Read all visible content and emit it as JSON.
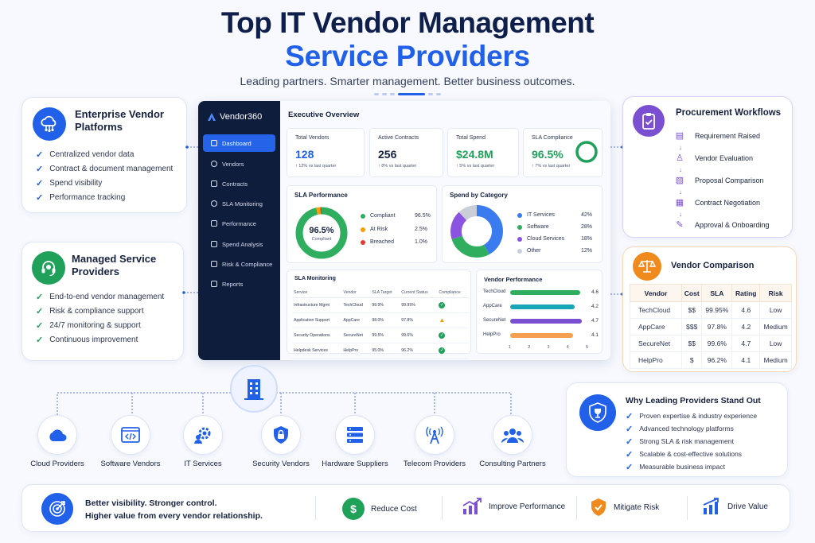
{
  "header": {
    "title_line1": "Top IT Vendor Management",
    "title_line2": "Service Providers",
    "subtitle": "Leading partners. Smarter management. Better business outcomes."
  },
  "colors": {
    "primary": "#2160e8",
    "navy": "#0f1f4b",
    "green": "#1fa15a",
    "orange": "#e8890b",
    "purple": "#7a4fd1",
    "red": "#e53935"
  },
  "left_cards": [
    {
      "title": "Enterprise Vendor Platforms",
      "icon": "cloud-network-icon",
      "items": [
        "Centralized vendor data",
        "Contract & document management",
        "Spend visibility",
        "Performance tracking"
      ]
    },
    {
      "title": "Managed Service Providers",
      "icon": "headset-icon",
      "items": [
        "End-to-end vendor management",
        "Risk & compliance support",
        "24/7 monitoring & support",
        "Continuous improvement"
      ]
    }
  ],
  "dashboard": {
    "brand": "Vendor360",
    "nav": [
      "Dashboard",
      "Vendors",
      "Contracts",
      "SLA Monitoring",
      "Performance",
      "Spend Analysis",
      "Risk & Compliance",
      "Reports"
    ],
    "active_nav": "Dashboard",
    "title": "Executive Overview",
    "kpis": [
      {
        "label": "Total Vendors",
        "value": "128",
        "delta": "↑ 12% vs last quarter"
      },
      {
        "label": "Active Contracts",
        "value": "256",
        "delta": "↑ 8% vs last quarter"
      },
      {
        "label": "Total Spend",
        "value": "$24.8M",
        "delta": "↑ 5% vs last quarter"
      },
      {
        "label": "SLA Compliance",
        "value": "96.5%",
        "delta": "↑ 7% vs last quarter"
      }
    ],
    "sla_performance": {
      "title": "SLA Performance",
      "center_value": "96.5%",
      "center_label": "Compliant",
      "legend": [
        {
          "name": "Compliant",
          "value": "96.5%",
          "color": "#2fae5f",
          "pct": 96.5
        },
        {
          "name": "At Risk",
          "value": "2.5%",
          "color": "#f5a000",
          "pct": 2.5
        },
        {
          "name": "Breached",
          "value": "1.0%",
          "color": "#e53935",
          "pct": 1.0
        }
      ]
    },
    "spend_by_category": {
      "title": "Spend by Category",
      "legend": [
        {
          "name": "IT Services",
          "value": "42%",
          "color": "#3b7bf0",
          "pct": 42
        },
        {
          "name": "Software",
          "value": "28%",
          "color": "#2fae5f",
          "pct": 28
        },
        {
          "name": "Cloud Services",
          "value": "18%",
          "color": "#8a54e0",
          "pct": 18
        },
        {
          "name": "Other",
          "value": "12%",
          "color": "#c9ced9",
          "pct": 12
        }
      ]
    },
    "sla_monitoring": {
      "title": "SLA Monitoring",
      "headers": [
        "Service",
        "Vendor",
        "SLA Target",
        "Current Status",
        "Compliance"
      ],
      "rows": [
        {
          "service": "Infrastructure Mgmt",
          "vendor": "TechCloud",
          "target": "99.9%",
          "current": "99.95%",
          "status": "ok"
        },
        {
          "service": "Application Support",
          "vendor": "AppCare",
          "target": "98.0%",
          "current": "97.8%",
          "status": "warn"
        },
        {
          "service": "Security Operations",
          "vendor": "SecureNet",
          "target": "99.5%",
          "current": "99.6%",
          "status": "ok"
        },
        {
          "service": "Helpdesk Services",
          "vendor": "HelpPro",
          "target": "95.0%",
          "current": "96.2%",
          "status": "ok"
        }
      ]
    },
    "vendor_performance": {
      "title": "Vendor Performance",
      "vendors": [
        {
          "name": "TechCloud",
          "value": 4.6,
          "label": "4.6",
          "color": "#2fae5f"
        },
        {
          "name": "AppCare",
          "value": 4.2,
          "label": "4.2",
          "color": "#18a5b8"
        },
        {
          "name": "SecureNet",
          "value": 4.7,
          "label": "4.7",
          "color": "#7a4fd1"
        },
        {
          "name": "HelpPro",
          "value": 4.1,
          "label": "4.1",
          "color": "#f5a050"
        }
      ],
      "axis_ticks": [
        "1",
        "2",
        "3",
        "4",
        "5"
      ]
    }
  },
  "procurement": {
    "title": "Procurement Workflows",
    "icon": "clipboard-check-icon",
    "steps": [
      "Requirement Raised",
      "Vendor Evaluation",
      "Proposal Comparison",
      "Contract Negotiation",
      "Approval & Onboarding"
    ]
  },
  "vendor_comparison": {
    "title": "Vendor Comparison",
    "icon": "scale-icon",
    "headers": [
      "Vendor",
      "Cost",
      "SLA",
      "Rating",
      "Risk"
    ],
    "rows": [
      {
        "vendor": "TechCloud",
        "cost": "$$",
        "sla": "99.95%",
        "rating": "4.6",
        "risk": "Low"
      },
      {
        "vendor": "AppCare",
        "cost": "$$$",
        "sla": "97.8%",
        "rating": "4.2",
        "risk": "Medium"
      },
      {
        "vendor": "SecureNet",
        "cost": "$$",
        "sla": "99.6%",
        "rating": "4.7",
        "risk": "Low"
      },
      {
        "vendor": "HelpPro",
        "cost": "$",
        "sla": "96.2%",
        "rating": "4.1",
        "risk": "Medium"
      }
    ]
  },
  "categories": [
    {
      "label": "Cloud Providers",
      "icon": "cloud-icon"
    },
    {
      "label": "Software Vendors",
      "icon": "code-window-icon"
    },
    {
      "label": "IT Services",
      "icon": "gear-person-icon"
    },
    {
      "label": "Security Vendors",
      "icon": "lock-shield-icon"
    },
    {
      "label": "Hardware Suppliers",
      "icon": "server-icon"
    },
    {
      "label": "Telecom Providers",
      "icon": "antenna-icon"
    },
    {
      "label": "Consulting Partners",
      "icon": "people-icon"
    }
  ],
  "why": {
    "title": "Why Leading Providers Stand Out",
    "icon": "trophy-shield-icon",
    "items": [
      "Proven expertise & industry experience",
      "Advanced technology platforms",
      "Strong SLA & risk management",
      "Scalable & cost-effective solutions",
      "Measurable business impact"
    ]
  },
  "bottom": {
    "tagline_1": "Better visibility. Stronger control.",
    "tagline_2": "Higher value from every vendor relationship.",
    "items": [
      {
        "label": "Reduce Cost",
        "icon": "dollar-down-icon"
      },
      {
        "label": "Improve Performance",
        "icon": "growth-chart-icon"
      },
      {
        "label": "Mitigate Risk",
        "icon": "shield-icon"
      },
      {
        "label": "Drive Value",
        "icon": "bar-growth-icon"
      }
    ]
  }
}
